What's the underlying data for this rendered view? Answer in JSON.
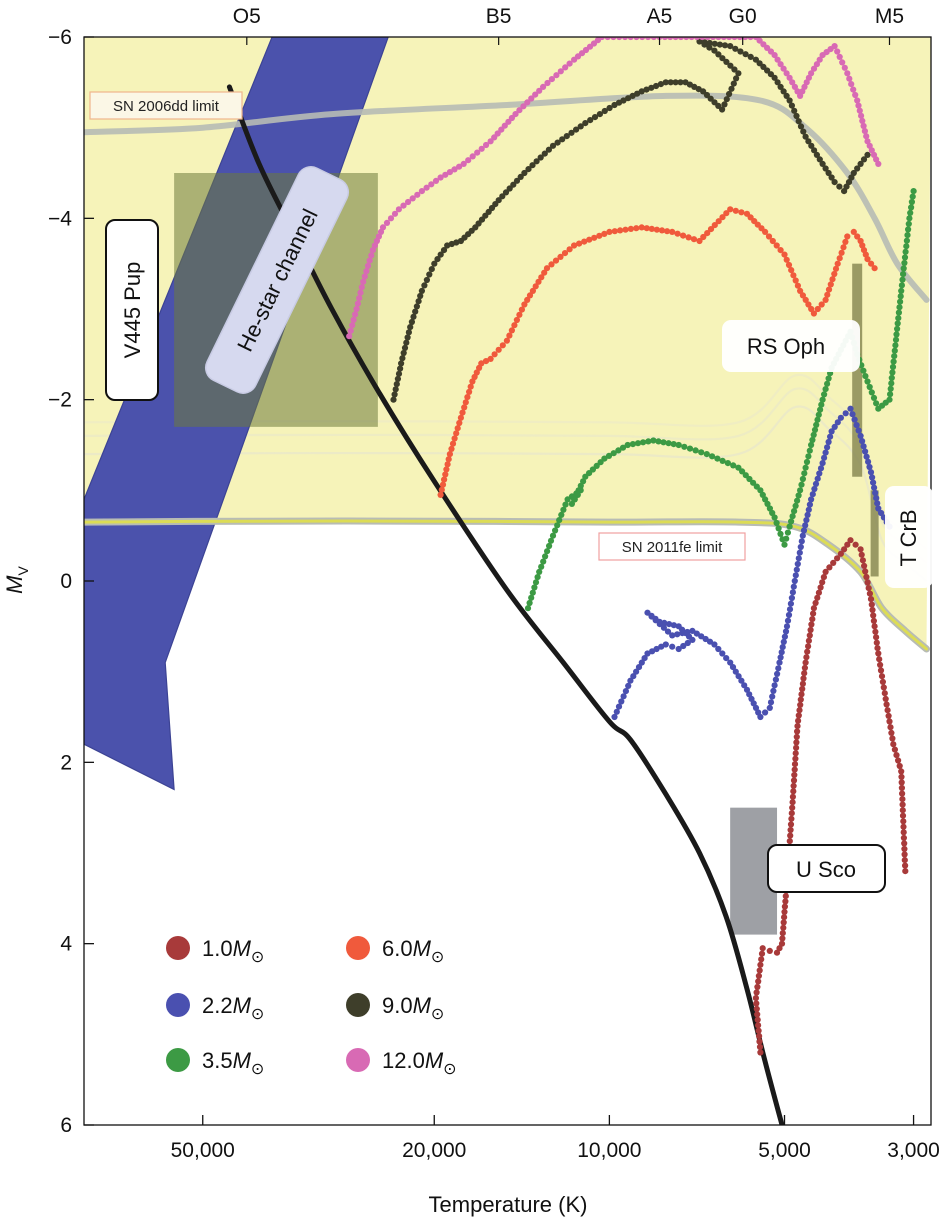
{
  "chart_data": {
    "type": "scatter",
    "xlabel": "Temperature (K)",
    "ylabel": "M",
    "ylabel_sub": "V",
    "x_scale": "log",
    "x_reversed": true,
    "xlim": [
      80000,
      2800
    ],
    "ylim": [
      6,
      -6
    ],
    "x_ticks": [
      {
        "value": 50000,
        "label": "50,000"
      },
      {
        "value": 20000,
        "label": "20,000"
      },
      {
        "value": 10000,
        "label": "10,000"
      },
      {
        "value": 5000,
        "label": "5,000"
      },
      {
        "value": 3000,
        "label": "3,000"
      }
    ],
    "y_ticks": [
      {
        "value": -6,
        "label": "−6"
      },
      {
        "value": -4,
        "label": "−4"
      },
      {
        "value": -2,
        "label": "−2"
      },
      {
        "value": 0,
        "label": "0"
      },
      {
        "value": 2,
        "label": "2"
      },
      {
        "value": 4,
        "label": "4"
      },
      {
        "value": 6,
        "label": "6"
      }
    ],
    "spectral_types": [
      {
        "label": "O5",
        "temp": 42000
      },
      {
        "label": "B5",
        "temp": 15500
      },
      {
        "label": "A5",
        "temp": 8200
      },
      {
        "label": "G0",
        "temp": 5900
      },
      {
        "label": "M5",
        "temp": 3300
      }
    ],
    "legend": {
      "symbol": "M",
      "sun": "⊙",
      "entries": [
        {
          "value": "1.0",
          "color": "#a83a3a"
        },
        {
          "value": "6.0",
          "color": "#f05a3c"
        },
        {
          "value": "2.2",
          "color": "#4a50b0"
        },
        {
          "value": "9.0",
          "color": "#3e3e2a"
        },
        {
          "value": "3.5",
          "color": "#3c9a44"
        },
        {
          "value": "12.0",
          "color": "#d86ab4"
        }
      ]
    },
    "main_sequence": [
      [
        45000,
        -5.45
      ],
      [
        40000,
        -4.6
      ],
      [
        35000,
        -3.85
      ],
      [
        30000,
        -3.0
      ],
      [
        25000,
        -2.1
      ],
      [
        20000,
        -1.1
      ],
      [
        15000,
        0.1
      ],
      [
        12000,
        0.9
      ],
      [
        10000,
        1.55
      ],
      [
        9200,
        1.75
      ],
      [
        8000,
        2.35
      ],
      [
        7000,
        3.0
      ],
      [
        6300,
        3.7
      ],
      [
        5800,
        4.5
      ],
      [
        5400,
        5.3
      ],
      [
        5000,
        6.1
      ]
    ],
    "tracks": [
      {
        "name": "1.0",
        "color": "#a83a3a",
        "points": [
          [
            5500,
            5.2
          ],
          [
            5600,
            4.6
          ],
          [
            5450,
            4.05
          ],
          [
            5300,
            4.08
          ],
          [
            5150,
            4.1
          ],
          [
            5050,
            4.0
          ],
          [
            4950,
            3.3
          ],
          [
            4850,
            2.5
          ],
          [
            4750,
            1.6
          ],
          [
            4600,
            0.9
          ],
          [
            4450,
            0.3
          ],
          [
            4250,
            -0.1
          ],
          [
            4000,
            -0.3
          ],
          [
            3850,
            -0.45
          ],
          [
            3700,
            -0.35
          ],
          [
            3550,
            0.2
          ],
          [
            3450,
            0.8
          ],
          [
            3350,
            1.3
          ],
          [
            3250,
            1.8
          ],
          [
            3150,
            2.1
          ],
          [
            3100,
            3.2
          ]
        ]
      },
      {
        "name": "2.2",
        "color": "#4a50b0",
        "points": [
          [
            9800,
            1.5
          ],
          [
            9200,
            1.1
          ],
          [
            8600,
            0.8
          ],
          [
            8000,
            0.7
          ],
          [
            7600,
            0.75
          ],
          [
            7200,
            0.65
          ],
          [
            7600,
            0.5
          ],
          [
            8200,
            0.45
          ],
          [
            8600,
            0.35
          ],
          [
            7800,
            0.6
          ],
          [
            7200,
            0.55
          ],
          [
            6600,
            0.7
          ],
          [
            6200,
            0.9
          ],
          [
            5800,
            1.2
          ],
          [
            5500,
            1.5
          ],
          [
            5300,
            1.4
          ],
          [
            5100,
            0.9
          ],
          [
            4950,
            0.5
          ],
          [
            4800,
            0.0
          ],
          [
            4650,
            -0.5
          ],
          [
            4500,
            -0.9
          ],
          [
            4300,
            -1.3
          ],
          [
            4150,
            -1.65
          ],
          [
            4000,
            -1.8
          ],
          [
            3850,
            -1.9
          ],
          [
            3700,
            -1.6
          ],
          [
            3550,
            -1.2
          ],
          [
            3450,
            -0.8
          ],
          [
            3300,
            -0.6
          ]
        ]
      },
      {
        "name": "3.5",
        "color": "#3c9a44",
        "points": [
          [
            13800,
            0.3
          ],
          [
            13200,
            -0.1
          ],
          [
            12500,
            -0.5
          ],
          [
            11800,
            -0.9
          ],
          [
            11200,
            -1.0
          ],
          [
            11600,
            -0.85
          ],
          [
            11000,
            -1.15
          ],
          [
            10200,
            -1.35
          ],
          [
            9300,
            -1.5
          ],
          [
            8400,
            -1.55
          ],
          [
            7600,
            -1.5
          ],
          [
            6800,
            -1.4
          ],
          [
            6000,
            -1.25
          ],
          [
            5500,
            -1.0
          ],
          [
            5200,
            -0.7
          ],
          [
            5000,
            -0.4
          ],
          [
            4900,
            -0.6
          ],
          [
            4700,
            -1.0
          ],
          [
            4500,
            -1.5
          ],
          [
            4300,
            -2.0
          ],
          [
            4150,
            -2.35
          ],
          [
            4000,
            -2.55
          ],
          [
            3850,
            -2.75
          ],
          [
            3750,
            -2.5
          ],
          [
            3600,
            -2.2
          ],
          [
            3450,
            -1.9
          ],
          [
            3300,
            -2.0
          ],
          [
            3150,
            -3.2
          ],
          [
            3050,
            -4.0
          ],
          [
            3000,
            -4.3
          ]
        ]
      },
      {
        "name": "6.0",
        "color": "#f05a3c",
        "points": [
          [
            19500,
            -0.95
          ],
          [
            18800,
            -1.4
          ],
          [
            18000,
            -1.8
          ],
          [
            17200,
            -2.2
          ],
          [
            16600,
            -2.4
          ],
          [
            16000,
            -2.45
          ],
          [
            15500,
            -2.55
          ],
          [
            15000,
            -2.65
          ],
          [
            14000,
            -3.05
          ],
          [
            12800,
            -3.45
          ],
          [
            11500,
            -3.7
          ],
          [
            10000,
            -3.85
          ],
          [
            8800,
            -3.9
          ],
          [
            7800,
            -3.85
          ],
          [
            7000,
            -3.75
          ],
          [
            6200,
            -4.1
          ],
          [
            5800,
            -4.05
          ],
          [
            5400,
            -3.85
          ],
          [
            5000,
            -3.6
          ],
          [
            4700,
            -3.2
          ],
          [
            4450,
            -2.95
          ],
          [
            4250,
            -3.1
          ],
          [
            4050,
            -3.5
          ],
          [
            3900,
            -3.8
          ],
          [
            3800,
            -3.85
          ],
          [
            3700,
            -3.75
          ],
          [
            3600,
            -3.55
          ],
          [
            3500,
            -3.45
          ]
        ]
      },
      {
        "name": "9.0",
        "color": "#3e3e2a",
        "points": [
          [
            23500,
            -2.0
          ],
          [
            22800,
            -2.4
          ],
          [
            22000,
            -2.8
          ],
          [
            21000,
            -3.2
          ],
          [
            20000,
            -3.5
          ],
          [
            19000,
            -3.7
          ],
          [
            18000,
            -3.75
          ],
          [
            17000,
            -3.9
          ],
          [
            15500,
            -4.2
          ],
          [
            14000,
            -4.5
          ],
          [
            12500,
            -4.8
          ],
          [
            11000,
            -5.05
          ],
          [
            9800,
            -5.25
          ],
          [
            8800,
            -5.4
          ],
          [
            8000,
            -5.5
          ],
          [
            7400,
            -5.5
          ],
          [
            6900,
            -5.4
          ],
          [
            6400,
            -5.2
          ],
          [
            6000,
            -5.6
          ],
          [
            6600,
            -5.85
          ],
          [
            7000,
            -5.95
          ],
          [
            6200,
            -5.9
          ],
          [
            5600,
            -5.75
          ],
          [
            5200,
            -5.55
          ],
          [
            4900,
            -5.3
          ],
          [
            4600,
            -4.9
          ],
          [
            4300,
            -4.6
          ],
          [
            4100,
            -4.4
          ],
          [
            3950,
            -4.3
          ],
          [
            3800,
            -4.5
          ],
          [
            3700,
            -4.6
          ],
          [
            3600,
            -4.7
          ]
        ]
      },
      {
        "name": "12.0",
        "color": "#d86ab4",
        "points": [
          [
            28000,
            -2.7
          ],
          [
            27200,
            -3.0
          ],
          [
            26500,
            -3.3
          ],
          [
            25500,
            -3.65
          ],
          [
            24500,
            -3.9
          ],
          [
            23000,
            -4.1
          ],
          [
            21000,
            -4.3
          ],
          [
            19500,
            -4.45
          ],
          [
            17800,
            -4.6
          ],
          [
            16000,
            -4.85
          ],
          [
            14500,
            -5.15
          ],
          [
            13000,
            -5.45
          ],
          [
            11500,
            -5.75
          ],
          [
            10300,
            -6.0
          ],
          [
            8200,
            -6.0
          ],
          [
            5600,
            -6.0
          ],
          [
            5200,
            -5.8
          ],
          [
            4900,
            -5.55
          ],
          [
            4700,
            -5.35
          ],
          [
            4500,
            -5.6
          ],
          [
            4300,
            -5.8
          ],
          [
            4100,
            -5.9
          ],
          [
            3900,
            -5.6
          ],
          [
            3750,
            -5.3
          ],
          [
            3600,
            -4.85
          ],
          [
            3450,
            -4.6
          ]
        ]
      }
    ],
    "he_star_channel_polygon": [
      [
        80000,
        1.8
      ],
      [
        56000,
        2.3
      ],
      [
        58000,
        0.9
      ],
      [
        24000,
        -6.0
      ],
      [
        38000,
        -6.0
      ],
      [
        80000,
        -0.9
      ]
    ],
    "limits": [
      {
        "label": "SN 2006dd limit",
        "points": [
          [
            80000,
            -4.95
          ],
          [
            50000,
            -5.0
          ],
          [
            30000,
            -5.15
          ],
          [
            15000,
            -5.25
          ],
          [
            8000,
            -5.35
          ],
          [
            5500,
            -5.3
          ],
          [
            4600,
            -5.0
          ],
          [
            3900,
            -4.5
          ],
          [
            3500,
            -4.0
          ],
          [
            3200,
            -3.5
          ],
          [
            2850,
            -3.1
          ]
        ]
      },
      {
        "label": "SN 2011fe limit",
        "points": [
          [
            80000,
            -0.65
          ],
          [
            40000,
            -0.66
          ],
          [
            20000,
            -0.66
          ],
          [
            10000,
            -0.65
          ],
          [
            6000,
            -0.65
          ],
          [
            4800,
            -0.6
          ],
          [
            4200,
            -0.4
          ],
          [
            3700,
            -0.1
          ],
          [
            3400,
            0.3
          ],
          [
            3100,
            0.55
          ],
          [
            2850,
            0.75
          ]
        ]
      }
    ],
    "annotations": [
      {
        "label": "V445 Pup",
        "box_x": [
          56000,
          25000
        ],
        "box_y": [
          -4.5,
          -1.7
        ]
      },
      {
        "label": "He-star channel"
      },
      {
        "label": "RS Oph",
        "bar_x": 3750,
        "bar_y": [
          -3.5,
          -1.15
        ]
      },
      {
        "label": "T CrB",
        "bar_x": 3500,
        "bar_y": [
          -1.0,
          -0.05
        ]
      },
      {
        "label": "U Sco",
        "box_x": [
          6200,
          5150
        ],
        "box_y": [
          2.5,
          3.9
        ]
      }
    ]
  }
}
